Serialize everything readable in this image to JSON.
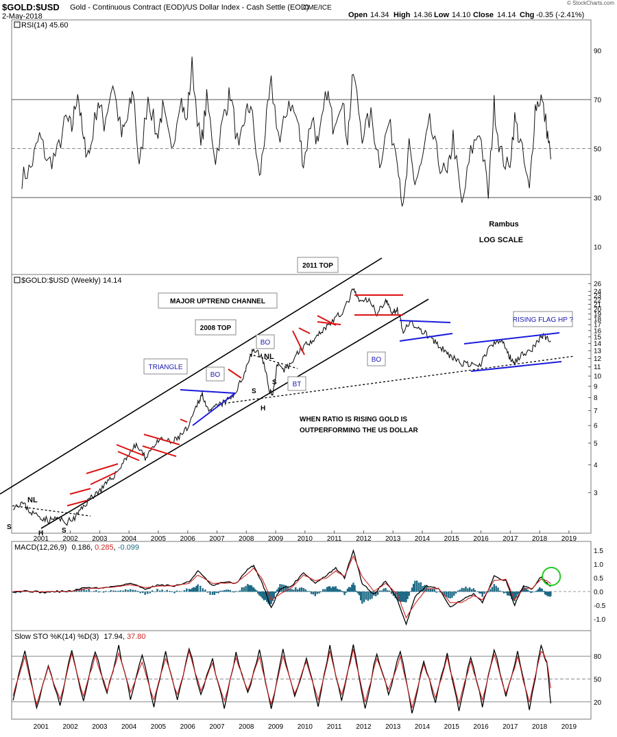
{
  "header": {
    "symbol": "$GOLD:$USD",
    "description": "Gold - Continuous Contract (EOD)/US Dollar Index - Cash Settle (EOD)",
    "exchange": "CME/ICE",
    "date": "2-May-2018",
    "open_label": "Open",
    "open": "14.34",
    "high_label": "High",
    "high": "14.36",
    "low_label": "Low",
    "low": "14.10",
    "close_label": "Close",
    "close": "14.14",
    "chg_label": "Chg",
    "chg": "-0.35 (-2.41%)",
    "watermark": "© StockCharts.com"
  },
  "colors": {
    "price": "#111111",
    "red_flag": "#dd1111",
    "blue_line": "#1a1adb",
    "macd_hist": "#1f6b86",
    "signal": "#cc2222",
    "ann_text": "#1a1ab0",
    "green_circle": "#22c922",
    "rsi_fill": "#3b6b4c",
    "grid": "#999999"
  },
  "chart_data": [
    {
      "type": "line",
      "panel": "rsi",
      "legend": "RSI(14) 45.60",
      "ylim": [
        0,
        100
      ],
      "yticks": [
        10,
        30,
        50,
        70,
        90
      ],
      "reference_lines": [
        30,
        50,
        70
      ],
      "x": [
        2000.3,
        2000.6,
        2000.9,
        2001.2,
        2001.5,
        2001.8,
        2002.0,
        2002.2,
        2002.4,
        2002.6,
        2002.9,
        2003.1,
        2003.4,
        2003.7,
        2003.9,
        2004.1,
        2004.3,
        2004.6,
        2004.9,
        2005.1,
        2005.4,
        2005.7,
        2005.9,
        2006.1,
        2006.4,
        2006.6,
        2006.9,
        2007.2,
        2007.4,
        2007.7,
        2007.9,
        2008.1,
        2008.4,
        2008.6,
        2008.8,
        2009.1,
        2009.4,
        2009.7,
        2009.9,
        2010.2,
        2010.4,
        2010.7,
        2010.9,
        2011.2,
        2011.4,
        2011.6,
        2011.9,
        2012.2,
        2012.5,
        2012.8,
        2013.1,
        2013.3,
        2013.5,
        2013.7,
        2013.9,
        2014.2,
        2014.5,
        2014.8,
        2015.0,
        2015.3,
        2015.6,
        2015.9,
        2016.2,
        2016.4,
        2016.6,
        2016.9,
        2017.1,
        2017.3,
        2017.6,
        2017.8,
        2018.0,
        2018.2,
        2018.33
      ],
      "values": [
        38,
        42,
        55,
        44,
        48,
        62,
        58,
        74,
        52,
        48,
        70,
        60,
        77,
        55,
        62,
        74,
        41,
        72,
        55,
        66,
        48,
        72,
        60,
        84,
        50,
        70,
        46,
        64,
        73,
        48,
        63,
        68,
        37,
        58,
        76,
        52,
        70,
        61,
        44,
        64,
        50,
        74,
        60,
        71,
        54,
        81,
        56,
        63,
        45,
        60,
        48,
        24,
        50,
        36,
        42,
        60,
        45,
        38,
        55,
        26,
        48,
        58,
        31,
        68,
        49,
        41,
        62,
        52,
        32,
        67,
        71,
        58,
        45.6
      ]
    },
    {
      "type": "line",
      "panel": "price",
      "legend": "$GOLD:$USD (Weekly) 14.14",
      "scale": "log",
      "ylim": [
        2.0,
        27.0
      ],
      "yticks": [
        3,
        4,
        5,
        6,
        7,
        8,
        9,
        10,
        11,
        12,
        13,
        14,
        15,
        16,
        17,
        18,
        19,
        20,
        21,
        22,
        23,
        24,
        26
      ],
      "x_tick_labels": [
        "2001",
        "2002",
        "2003",
        "2004",
        "2005",
        "2006",
        "2007",
        "2008",
        "2009",
        "2010",
        "2011",
        "2012",
        "2013",
        "2014",
        "2015",
        "2016",
        "2017",
        "2018",
        "2019"
      ],
      "x": [
        2000.0,
        2000.3,
        2000.6,
        2000.9,
        2001.2,
        2001.5,
        2001.8,
        2002.1,
        2002.4,
        2002.7,
        2003.0,
        2003.3,
        2003.6,
        2003.9,
        2004.2,
        2004.5,
        2004.8,
        2005.1,
        2005.4,
        2005.7,
        2006.0,
        2006.3,
        2006.45,
        2006.7,
        2006.9,
        2007.2,
        2007.5,
        2007.8,
        2008.0,
        2008.2,
        2008.5,
        2008.7,
        2008.85,
        2009.0,
        2009.2,
        2009.5,
        2009.8,
        2010.1,
        2010.4,
        2010.7,
        2011.0,
        2011.3,
        2011.6,
        2011.8,
        2012.1,
        2012.4,
        2012.7,
        2012.9,
        2013.1,
        2013.3,
        2013.6,
        2013.9,
        2014.2,
        2014.5,
        2014.8,
        2015.0,
        2015.3,
        2015.6,
        2015.9,
        2016.1,
        2016.4,
        2016.7,
        2016.9,
        2017.1,
        2017.4,
        2017.7,
        2017.9,
        2018.1,
        2018.33
      ],
      "values": [
        2.6,
        2.7,
        2.45,
        2.35,
        2.25,
        2.3,
        2.2,
        2.3,
        2.6,
        2.9,
        3.1,
        3.4,
        3.8,
        4.4,
        4.9,
        4.3,
        4.9,
        5.2,
        5.0,
        5.4,
        5.9,
        7.6,
        8.3,
        6.8,
        7.3,
        7.6,
        8.1,
        9.6,
        11.5,
        13.2,
        12.1,
        9.0,
        8.1,
        11.2,
        10.5,
        11.5,
        13.3,
        14.2,
        15.4,
        16.8,
        18.2,
        19.8,
        24.5,
        21.5,
        22.0,
        19.2,
        21.8,
        19.5,
        19.8,
        16.1,
        17.2,
        16.0,
        15.0,
        13.6,
        12.7,
        12.0,
        11.4,
        11.2,
        11.0,
        12.6,
        14.0,
        14.3,
        12.3,
        11.6,
        12.7,
        13.2,
        14.5,
        15.2,
        14.14
      ],
      "annotations": [
        "2011 TOP",
        "MAJOR UPTREND CHANNEL",
        "2008 TOP",
        "TRIANGLE",
        "BO",
        "BO",
        "BO",
        "NL",
        "NL",
        "BT",
        "S",
        "H",
        "S",
        "S",
        "H",
        "S",
        "RISING FLAG HP ?",
        "WHEN RATIO IS RISING GOLD IS",
        "OUTPERFORMING THE US DOLLAR",
        "Rambus",
        "LOG SCALE"
      ]
    },
    {
      "type": "line",
      "panel": "macd",
      "legend_name": "MACD(12,26,9)",
      "legend_macd": "0.186",
      "legend_signal": "0.285",
      "legend_hist": "-0.099",
      "ylim": [
        -1.3,
        1.7
      ],
      "yticks": [
        -1.0,
        -0.5,
        0.0,
        0.5,
        1.0,
        1.5
      ],
      "x": [
        2000.0,
        2000.5,
        2001.0,
        2001.5,
        2002.0,
        2002.5,
        2003.0,
        2003.5,
        2004.0,
        2004.5,
        2005.0,
        2005.5,
        2006.0,
        2006.3,
        2006.8,
        2007.2,
        2007.6,
        2008.0,
        2008.2,
        2008.5,
        2008.8,
        2009.1,
        2009.5,
        2009.9,
        2010.3,
        2010.7,
        2011.0,
        2011.3,
        2011.6,
        2011.9,
        2012.3,
        2012.7,
        2013.1,
        2013.4,
        2013.7,
        2014.1,
        2014.5,
        2014.9,
        2015.3,
        2015.7,
        2016.0,
        2016.4,
        2016.8,
        2017.1,
        2017.4,
        2017.7,
        2018.0,
        2018.2,
        2018.33
      ],
      "series": [
        {
          "role": "macd",
          "values": [
            0.0,
            0.02,
            -0.03,
            0.0,
            0.02,
            0.15,
            0.12,
            0.2,
            0.3,
            0.1,
            0.25,
            0.2,
            0.35,
            0.75,
            0.2,
            0.35,
            0.3,
            0.8,
            0.95,
            0.3,
            -0.6,
            0.1,
            0.2,
            0.7,
            0.3,
            0.6,
            0.85,
            0.5,
            1.5,
            0.3,
            -0.1,
            0.4,
            -0.3,
            -1.2,
            -0.2,
            0.2,
            0.1,
            -0.55,
            -0.3,
            -0.1,
            -0.4,
            0.55,
            0.4,
            -0.5,
            0.2,
            0.1,
            0.55,
            0.3,
            0.19
          ]
        },
        {
          "role": "signal",
          "values": [
            0.0,
            0.01,
            -0.01,
            0.0,
            0.01,
            0.1,
            0.13,
            0.17,
            0.25,
            0.15,
            0.2,
            0.21,
            0.3,
            0.6,
            0.3,
            0.3,
            0.31,
            0.65,
            0.85,
            0.45,
            -0.3,
            -0.1,
            0.15,
            0.6,
            0.4,
            0.5,
            0.75,
            0.55,
            1.3,
            0.55,
            0.0,
            0.3,
            -0.1,
            -0.95,
            -0.45,
            0.1,
            0.12,
            -0.4,
            -0.4,
            -0.15,
            -0.3,
            0.4,
            0.45,
            -0.3,
            0.1,
            0.12,
            0.45,
            0.4,
            0.285
          ]
        }
      ]
    },
    {
      "type": "line",
      "panel": "stochastic",
      "legend_name": "Slow STO %K(14) %D(3)",
      "legend_k": "17.94",
      "legend_d": "37.80",
      "ylim": [
        0,
        100
      ],
      "yticks": [
        20,
        50,
        80
      ],
      "x": [
        2000.0,
        2000.4,
        2000.8,
        2001.2,
        2001.6,
        2002.0,
        2002.4,
        2002.8,
        2003.2,
        2003.6,
        2004.0,
        2004.4,
        2004.8,
        2005.2,
        2005.6,
        2006.0,
        2006.4,
        2006.8,
        2007.2,
        2007.6,
        2008.0,
        2008.4,
        2008.8,
        2009.2,
        2009.6,
        2010.0,
        2010.4,
        2010.8,
        2011.2,
        2011.6,
        2012.0,
        2012.4,
        2012.8,
        2013.2,
        2013.6,
        2014.0,
        2014.4,
        2014.8,
        2015.2,
        2015.6,
        2016.0,
        2016.4,
        2016.8,
        2017.2,
        2017.6,
        2018.0,
        2018.2,
        2018.33
      ],
      "series": [
        {
          "role": "k",
          "values": [
            25,
            85,
            10,
            70,
            15,
            90,
            20,
            88,
            30,
            92,
            25,
            80,
            15,
            85,
            20,
            92,
            30,
            75,
            12,
            85,
            30,
            88,
            8,
            90,
            25,
            80,
            15,
            92,
            20,
            95,
            10,
            85,
            30,
            88,
            5,
            75,
            20,
            85,
            10,
            80,
            15,
            90,
            25,
            85,
            10,
            95,
            70,
            17.94
          ]
        },
        {
          "role": "d",
          "values": [
            30,
            78,
            18,
            65,
            22,
            82,
            28,
            80,
            35,
            85,
            32,
            74,
            22,
            78,
            28,
            85,
            35,
            70,
            20,
            78,
            35,
            80,
            15,
            82,
            30,
            74,
            22,
            85,
            28,
            88,
            18,
            78,
            35,
            80,
            12,
            70,
            26,
            78,
            18,
            74,
            22,
            83,
            30,
            78,
            18,
            88,
            75,
            37.8
          ]
        }
      ]
    }
  ]
}
